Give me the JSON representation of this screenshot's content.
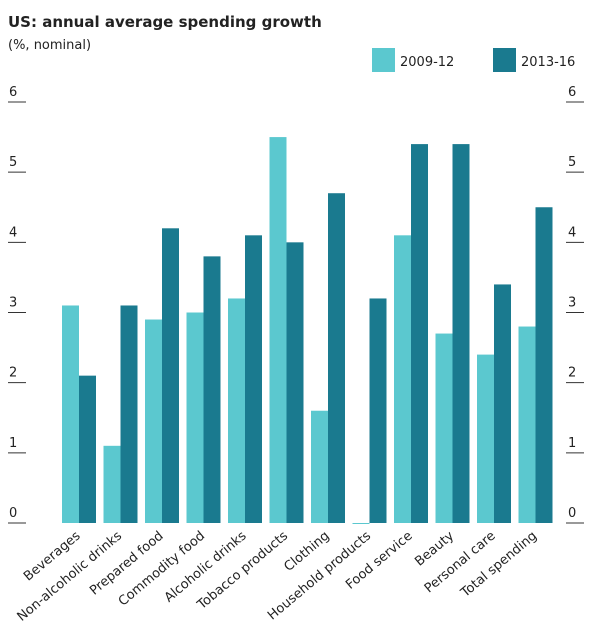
{
  "chart_data": {
    "type": "bar",
    "title": "US: annual average spending growth",
    "subtitle": "(%, nominal)",
    "categories": [
      "Beverages",
      "Non-alcoholic drinks",
      "Prepared food",
      "Commodity food",
      "Alcoholic drinks",
      "Tobacco products",
      "Clothing",
      "Household products",
      "Food service",
      "Beauty",
      "Personal care",
      "Total spending"
    ],
    "series": [
      {
        "name": "2009-12",
        "color": "#5bc8cf",
        "values": [
          3.1,
          1.1,
          2.9,
          3.0,
          3.2,
          5.5,
          1.6,
          0,
          4.1,
          2.7,
          2.4,
          2.8
        ]
      },
      {
        "name": "2013-16",
        "color": "#1a7a8f",
        "values": [
          2.1,
          3.1,
          4.2,
          3.8,
          4.1,
          4.0,
          4.7,
          3.2,
          5.4,
          5.4,
          3.4,
          4.5
        ]
      }
    ],
    "ylim": [
      0,
      6
    ],
    "yticks": [
      0,
      1,
      2,
      3,
      4,
      5,
      6
    ],
    "legend": "top-right"
  }
}
